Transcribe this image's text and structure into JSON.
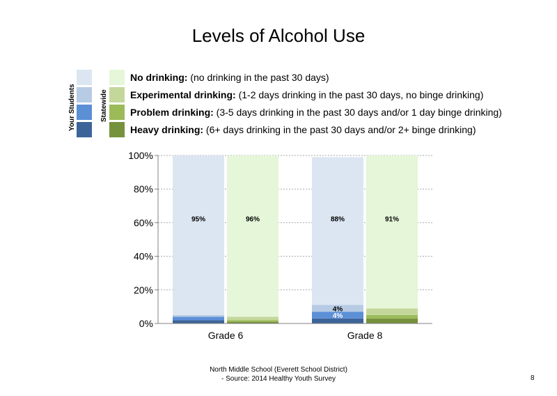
{
  "chart_data": {
    "type": "bar",
    "stacked": true,
    "title": "Levels of Alcohol Use",
    "categories": [
      "Grade 6",
      "Grade 8"
    ],
    "groups": [
      "Your Students",
      "Statewide"
    ],
    "ylim": [
      0,
      100
    ],
    "yticks": [
      "0%",
      "20%",
      "40%",
      "60%",
      "80%",
      "100%"
    ],
    "grid": true,
    "legend_placement": "top",
    "series": [
      {
        "name": "Heavy drinking",
        "desc": "(6+ days drinking in the past 30 days and/or 2+ binge drinking)",
        "color_students": "#3d6498",
        "color_state": "#76923c",
        "values": [
          [
            2,
            1
          ],
          [
            3,
            3
          ]
        ]
      },
      {
        "name": "Problem drinking",
        "desc": "(3-5 days drinking in the past 30 days and/or 1 day binge drinking)",
        "color_students": "#5b8fd6",
        "color_state": "#9bbb59",
        "values": [
          [
            2,
            1
          ],
          [
            4,
            2
          ]
        ]
      },
      {
        "name": "Experimental drinking",
        "desc": "(1-2 days drinking in the past 30 days, no binge drinking)",
        "color_students": "#b7cbe4",
        "color_state": "#c4d79b",
        "values": [
          [
            1,
            2
          ],
          [
            4,
            4
          ]
        ]
      },
      {
        "name": "No drinking",
        "desc": "(no drinking in the past 30 days)",
        "color_students": "#dce6f2",
        "color_state": "#e5f6d9",
        "values": [
          [
            95,
            96
          ],
          [
            88,
            91
          ]
        ]
      }
    ],
    "data_labels": [
      {
        "category": 0,
        "group": 0,
        "series": 3,
        "text": "95%"
      },
      {
        "category": 0,
        "group": 1,
        "series": 3,
        "text": "96%"
      },
      {
        "category": 1,
        "group": 0,
        "series": 3,
        "text": "88%"
      },
      {
        "category": 1,
        "group": 1,
        "series": 3,
        "text": "91%"
      },
      {
        "category": 1,
        "group": 0,
        "series": 2,
        "text": "4%"
      },
      {
        "category": 1,
        "group": 0,
        "series": 1,
        "text": "4%"
      }
    ]
  },
  "legend": {
    "students_label": "Your Students",
    "state_label": "Statewide",
    "items": [
      {
        "bold": "No drinking:",
        "rest": " (no drinking in the past 30 days)"
      },
      {
        "bold": "Experimental drinking:",
        "rest": " (1-2 days drinking in the past 30 days, no binge drinking)"
      },
      {
        "bold": "Problem drinking:",
        "rest": " (3-5 days drinking in the past 30 days and/or 1 day binge drinking)"
      },
      {
        "bold": "Heavy drinking:",
        "rest": " (6+ days drinking in the past 30 days and/or 2+ binge drinking)"
      }
    ]
  },
  "footer": {
    "line1": "North Middle School (Everett School District)",
    "line2": "- Source: 2014 Healthy Youth Survey"
  },
  "page_number": "8"
}
